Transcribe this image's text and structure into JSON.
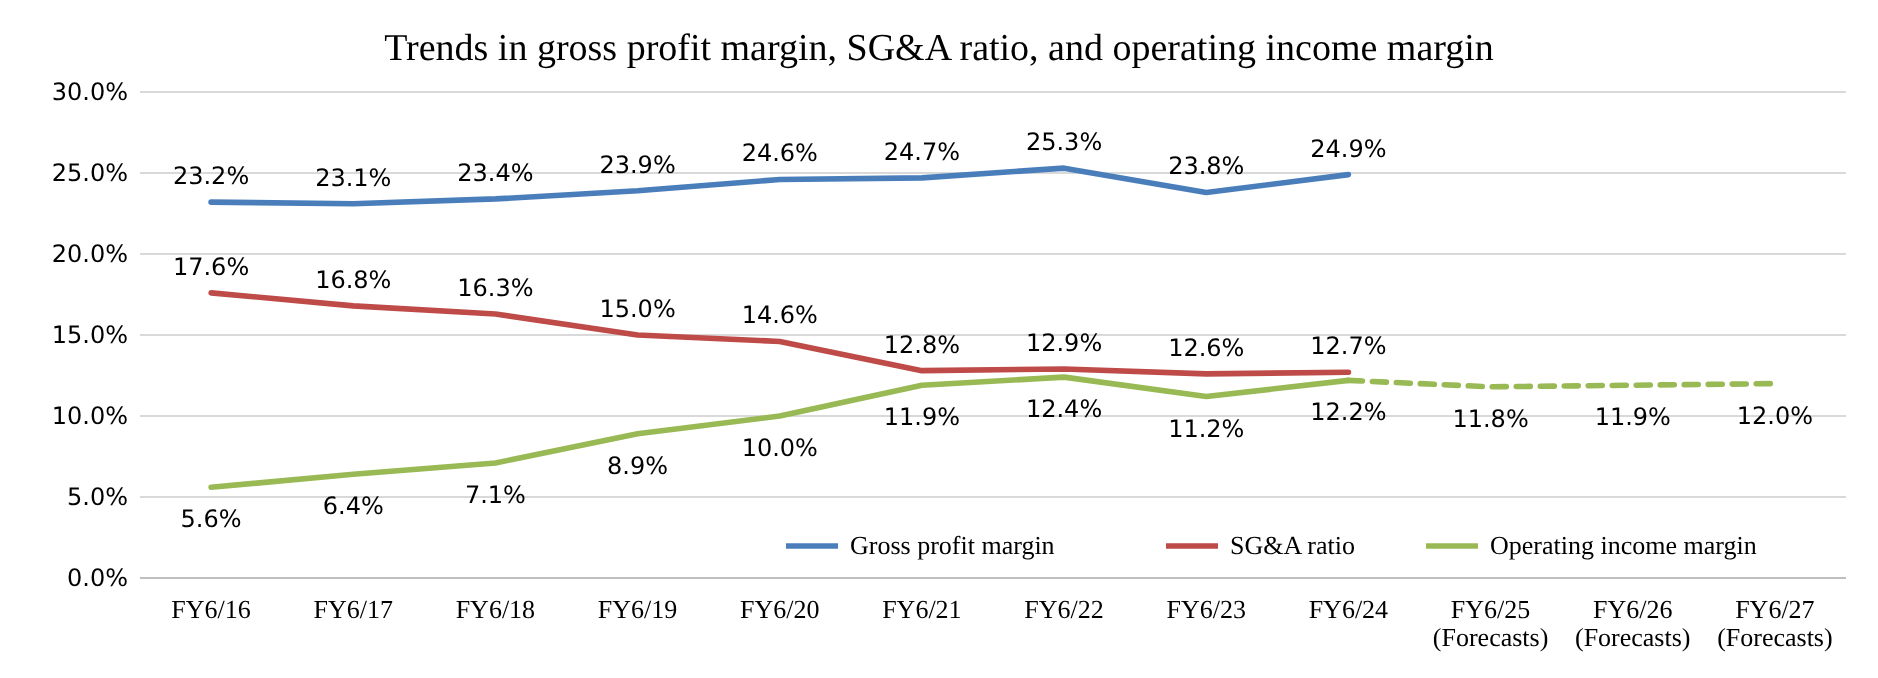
{
  "chart_data": {
    "type": "line",
    "title": "Trends in gross profit margin, SG&A ratio, and operating income margin",
    "categories": [
      "FY6/16",
      "FY6/17",
      "FY6/18",
      "FY6/19",
      "FY6/20",
      "FY6/21",
      "FY6/22",
      "FY6/23",
      "FY6/24",
      "FY6/25 (Forecasts)",
      "FY6/26 (Forecasts)",
      "FY6/27 (Forecasts)"
    ],
    "series": [
      {
        "name": "Gross profit margin",
        "color": "#4a7ebb",
        "values": [
          23.2,
          23.1,
          23.4,
          23.9,
          24.6,
          24.7,
          25.3,
          23.8,
          24.9,
          null,
          null,
          null
        ],
        "value_labels": [
          "23.2%",
          "23.1%",
          "23.4%",
          "23.9%",
          "24.6%",
          "24.7%",
          "25.3%",
          "23.8%",
          "24.9%",
          null,
          null,
          null
        ]
      },
      {
        "name": "SG&A ratio",
        "color": "#be4b48",
        "values": [
          17.6,
          16.8,
          16.3,
          15.0,
          14.6,
          12.8,
          12.9,
          12.6,
          12.7,
          null,
          null,
          null
        ],
        "value_labels": [
          "17.6%",
          "16.8%",
          "16.3%",
          "15.0%",
          "14.6%",
          "12.8%",
          "12.9%",
          "12.6%",
          "12.7%",
          null,
          null,
          null
        ]
      },
      {
        "name": "Operating income margin",
        "color": "#98b954",
        "values": [
          5.6,
          6.4,
          7.1,
          8.9,
          10.0,
          11.9,
          12.4,
          11.2,
          12.2,
          null,
          null,
          null
        ],
        "value_labels": [
          "5.6%",
          "6.4%",
          "7.1%",
          "8.9%",
          "10.0%",
          "11.9%",
          "12.4%",
          "11.2%",
          "12.2%",
          null,
          null,
          null
        ]
      },
      {
        "color": "#98b954",
        "line_style": "dashed",
        "values": [
          null,
          null,
          null,
          null,
          null,
          null,
          null,
          null,
          12.2,
          11.8,
          11.9,
          12.0
        ],
        "value_labels": [
          null,
          null,
          null,
          null,
          null,
          null,
          null,
          null,
          null,
          "11.8%",
          "11.9%",
          "12.0%"
        ]
      }
    ],
    "ylim": [
      0,
      30
    ],
    "yticks": [
      {
        "value": 0,
        "label": "0.0%"
      },
      {
        "value": 5,
        "label": "5.0%"
      },
      {
        "value": 10,
        "label": "10.0%"
      },
      {
        "value": 15,
        "label": "15.0%"
      },
      {
        "value": 20,
        "label": "20.0%"
      },
      {
        "value": 25,
        "label": "25.0%"
      },
      {
        "value": 30,
        "label": "30.0%"
      }
    ],
    "grid": "y",
    "legend": "bottom right",
    "marker": "none"
  }
}
